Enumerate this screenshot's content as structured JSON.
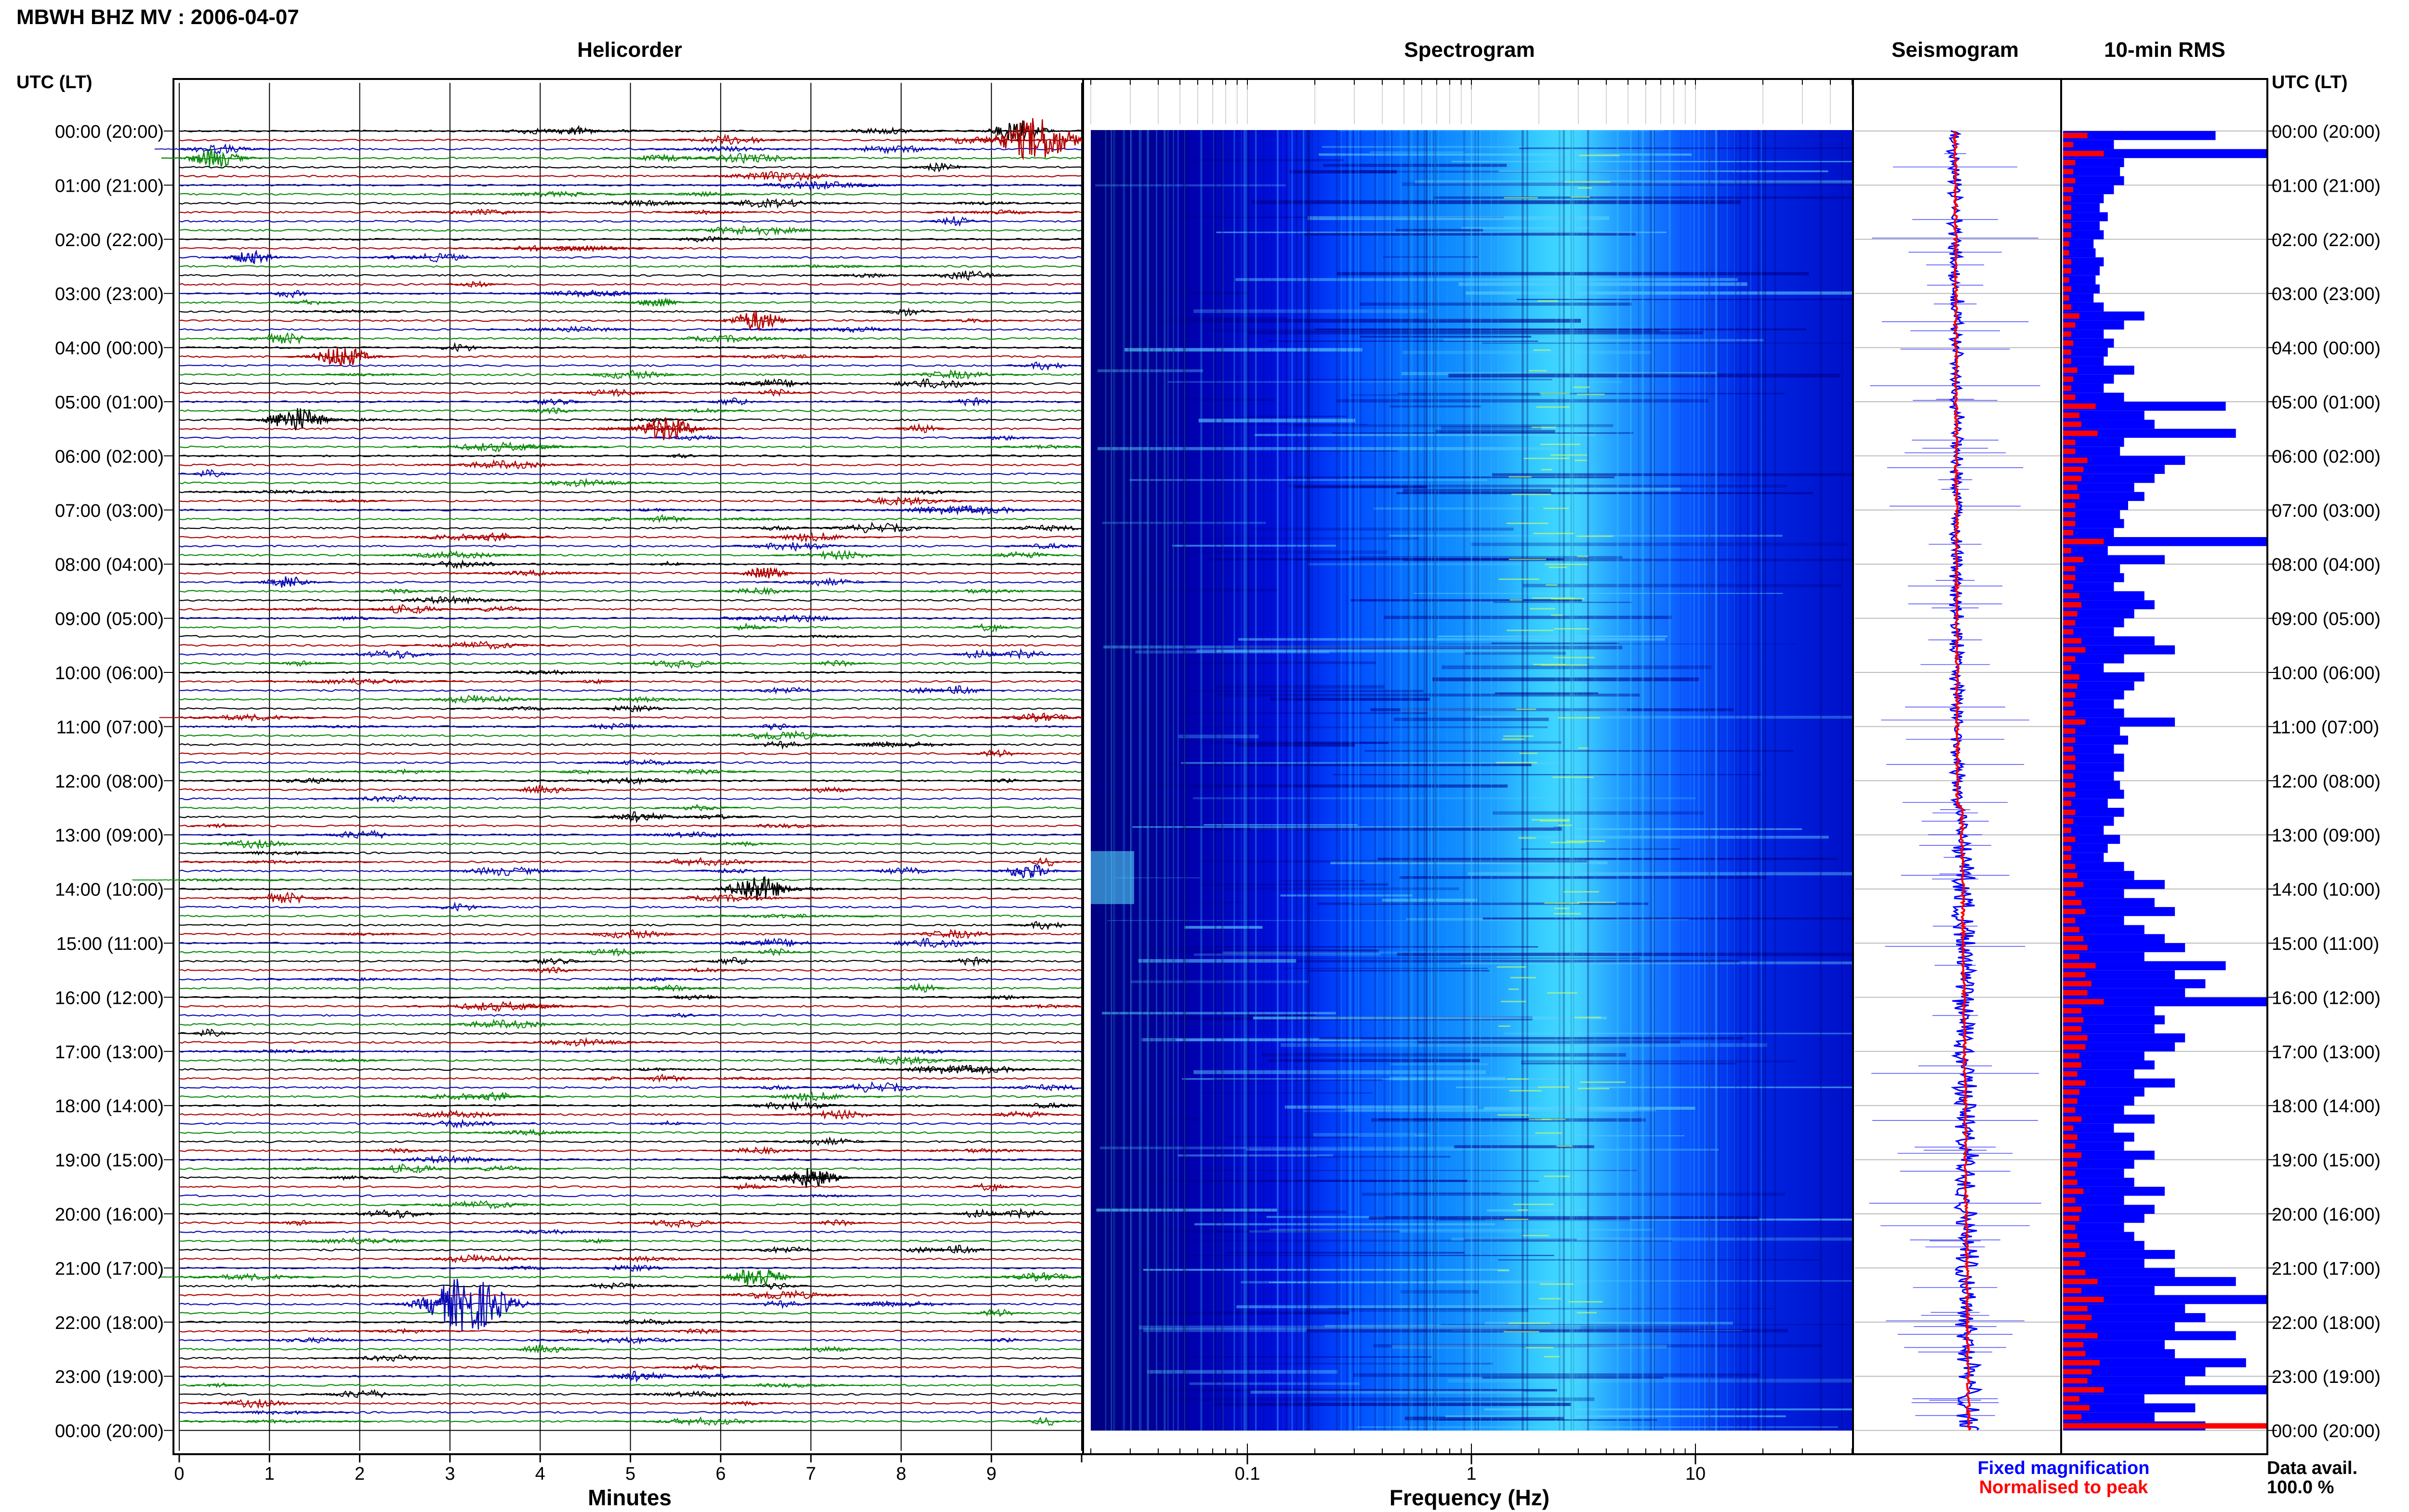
{
  "station_title": "MBWH BHZ MV : 2006-04-07",
  "panels": {
    "helicorder": "Helicorder",
    "spectrogram": "Spectrogram",
    "seismogram": "Seismogram",
    "rms": "10-min RMS"
  },
  "axis_header": "UTC (LT)",
  "time_labels": [
    "00:00 (20:00)",
    "01:00 (21:00)",
    "02:00 (22:00)",
    "03:00 (23:00)",
    "04:00 (00:00)",
    "05:00 (01:00)",
    "06:00 (02:00)",
    "07:00 (03:00)",
    "08:00 (04:00)",
    "09:00 (05:00)",
    "10:00 (06:00)",
    "11:00 (07:00)",
    "12:00 (08:00)",
    "13:00 (09:00)",
    "14:00 (10:00)",
    "15:00 (11:00)",
    "16:00 (12:00)",
    "17:00 (13:00)",
    "18:00 (14:00)",
    "19:00 (15:00)",
    "20:00 (16:00)",
    "21:00 (17:00)",
    "22:00 (18:00)",
    "23:00 (19:00)",
    "00:00 (20:00)"
  ],
  "helicorder_xlabel": "Minutes",
  "helicorder_ticks": [
    "0",
    "1",
    "2",
    "3",
    "4",
    "5",
    "6",
    "7",
    "8",
    "9"
  ],
  "spectrogram_xlabel": "Frequency (Hz)",
  "spectrogram_ticks": [
    "0.1",
    "1",
    "10"
  ],
  "legend": {
    "fixed": "Fixed magnification",
    "normalised": "Normalised to peak"
  },
  "availability": {
    "label": "Data avail.",
    "value": "100.0 %"
  },
  "colors": {
    "trace_black": "#000000",
    "trace_red": "#b00000",
    "trace_blue": "#0a0ab4",
    "trace_green": "#0a8a0a",
    "rms_fixed": "#0000ff",
    "rms_normalised": "#ff0000",
    "legend_fixed": "#0000ff",
    "legend_normalised": "#ff0000"
  },
  "chart_data": [
    {
      "type": "line",
      "panel": "Helicorder",
      "xlabel": "Minutes",
      "xlim": [
        0,
        10
      ],
      "rows_per_hour": 6,
      "row_count": 144,
      "events": [
        {
          "hour": 0,
          "row": 0,
          "minute": 4.4,
          "amp": 0.6
        },
        {
          "hour": 0,
          "row": 0,
          "minute": 9.3,
          "amp": 1.4
        },
        {
          "hour": 0,
          "row": 1,
          "minute": 9.5,
          "amp": 2.8
        },
        {
          "hour": 0,
          "row": 3,
          "minute": 0.4,
          "amp": 1.2
        },
        {
          "hour": 2,
          "row": 2,
          "minute": 0.8,
          "amp": 0.8
        },
        {
          "hour": 3,
          "row": 1,
          "minute": 5.3,
          "amp": 0.6
        },
        {
          "hour": 3,
          "row": 3,
          "minute": 6.4,
          "amp": 1.3
        },
        {
          "hour": 4,
          "row": 1,
          "minute": 1.8,
          "amp": 1.4
        },
        {
          "hour": 5,
          "row": 3,
          "minute": 5.4,
          "amp": 1.6
        },
        {
          "hour": 5,
          "row": 2,
          "minute": 1.3,
          "amp": 1.6
        },
        {
          "hour": 8,
          "row": 1,
          "minute": 6.5,
          "amp": 0.8
        },
        {
          "hour": 8,
          "row": 2,
          "minute": 1.2,
          "amp": 0.8
        },
        {
          "hour": 13,
          "row": 4,
          "minute": 9.4,
          "amp": 1.0
        },
        {
          "hour": 14,
          "row": 0,
          "minute": 6.4,
          "amp": 1.7
        },
        {
          "hour": 19,
          "row": 2,
          "minute": 7.0,
          "amp": 1.3
        },
        {
          "hour": 21,
          "row": 4,
          "minute": 3.2,
          "amp": 3.5
        },
        {
          "hour": 21,
          "row": 1,
          "minute": 6.4,
          "amp": 1.4
        }
      ]
    },
    {
      "type": "heatmap",
      "panel": "Spectrogram",
      "xlabel": "Frequency (Hz)",
      "x_scale": "log",
      "xlim": [
        0.02,
        50
      ],
      "xticks": [
        0.1,
        1,
        10
      ],
      "colormap": [
        "#00007f",
        "#0000c8",
        "#0032ff",
        "#0a96ff",
        "#32d2ff",
        "#b4ff64"
      ],
      "dominant_band_hz": [
        1.5,
        4
      ]
    },
    {
      "type": "line",
      "panel": "Seismogram",
      "series": [
        {
          "name": "Fixed magnification",
          "color": "#0000ff"
        },
        {
          "name": "Normalised to peak",
          "color": "#ff0000"
        }
      ]
    },
    {
      "type": "bar",
      "panel": "10-min RMS",
      "orientation": "horizontal",
      "bin_minutes": 10,
      "series": [
        {
          "name": "Fixed magnification",
          "color": "#0000ff",
          "values": [
            0.75,
            0.25,
            1.0,
            0.3,
            0.28,
            0.3,
            0.25,
            0.2,
            0.18,
            0.22,
            0.18,
            0.2,
            0.15,
            0.16,
            0.2,
            0.18,
            0.16,
            0.18,
            0.15,
            0.2,
            0.4,
            0.3,
            0.2,
            0.25,
            0.22,
            0.2,
            0.35,
            0.25,
            0.2,
            0.3,
            0.8,
            0.4,
            0.45,
            0.85,
            0.3,
            0.28,
            0.6,
            0.5,
            0.45,
            0.35,
            0.4,
            0.32,
            0.28,
            0.3,
            0.25,
            1.0,
            0.22,
            0.5,
            0.28,
            0.3,
            0.25,
            0.4,
            0.45,
            0.35,
            0.3,
            0.25,
            0.45,
            0.55,
            0.3,
            0.2,
            0.4,
            0.35,
            0.3,
            0.25,
            0.3,
            0.55,
            0.28,
            0.32,
            0.25,
            0.3,
            0.3,
            0.25,
            0.28,
            0.3,
            0.22,
            0.3,
            0.25,
            0.2,
            0.28,
            0.22,
            0.2,
            0.3,
            0.35,
            0.5,
            0.3,
            0.45,
            0.55,
            0.3,
            0.4,
            0.5,
            0.6,
            0.4,
            0.8,
            0.55,
            0.7,
            0.6,
            1.0,
            0.45,
            0.5,
            0.45,
            0.6,
            0.55,
            0.4,
            0.45,
            0.35,
            0.55,
            0.4,
            0.35,
            0.3,
            0.45,
            0.25,
            0.35,
            0.3,
            0.45,
            0.35,
            0.3,
            0.35,
            0.5,
            0.3,
            0.45,
            0.4,
            0.3,
            0.35,
            0.4,
            0.55,
            0.4,
            0.55,
            0.85,
            0.45,
            1.0,
            0.6,
            0.7,
            0.55,
            0.85,
            0.5,
            0.55,
            0.9,
            0.7,
            0.6,
            1.0,
            0.4,
            0.65,
            0.45,
            0.7
          ]
        },
        {
          "name": "Normalised to peak",
          "color": "#ff0000",
          "values": [
            0.12,
            0.05,
            0.2,
            0.06,
            0.05,
            0.06,
            0.05,
            0.04,
            0.04,
            0.04,
            0.04,
            0.04,
            0.03,
            0.03,
            0.04,
            0.04,
            0.03,
            0.04,
            0.03,
            0.04,
            0.08,
            0.06,
            0.04,
            0.05,
            0.04,
            0.04,
            0.07,
            0.05,
            0.04,
            0.06,
            0.16,
            0.08,
            0.09,
            0.17,
            0.06,
            0.06,
            0.12,
            0.1,
            0.09,
            0.07,
            0.08,
            0.06,
            0.06,
            0.06,
            0.05,
            0.2,
            0.04,
            0.1,
            0.06,
            0.06,
            0.05,
            0.08,
            0.09,
            0.07,
            0.06,
            0.05,
            0.09,
            0.11,
            0.06,
            0.04,
            0.08,
            0.07,
            0.06,
            0.05,
            0.06,
            0.11,
            0.06,
            0.06,
            0.05,
            0.06,
            0.06,
            0.05,
            0.06,
            0.06,
            0.04,
            0.06,
            0.05,
            0.04,
            0.06,
            0.04,
            0.04,
            0.06,
            0.07,
            0.1,
            0.06,
            0.09,
            0.11,
            0.06,
            0.08,
            0.1,
            0.12,
            0.08,
            0.16,
            0.11,
            0.14,
            0.12,
            0.2,
            0.09,
            0.1,
            0.09,
            0.12,
            0.11,
            0.08,
            0.09,
            0.07,
            0.11,
            0.08,
            0.07,
            0.06,
            0.09,
            0.05,
            0.07,
            0.06,
            0.09,
            0.07,
            0.06,
            0.07,
            0.1,
            0.06,
            0.09,
            0.08,
            0.06,
            0.07,
            0.08,
            0.11,
            0.08,
            0.11,
            0.17,
            0.09,
            0.2,
            0.12,
            0.14,
            0.11,
            0.17,
            0.1,
            0.11,
            0.18,
            0.14,
            0.12,
            0.2,
            0.08,
            0.13,
            0.09,
            1.0
          ]
        }
      ]
    }
  ]
}
